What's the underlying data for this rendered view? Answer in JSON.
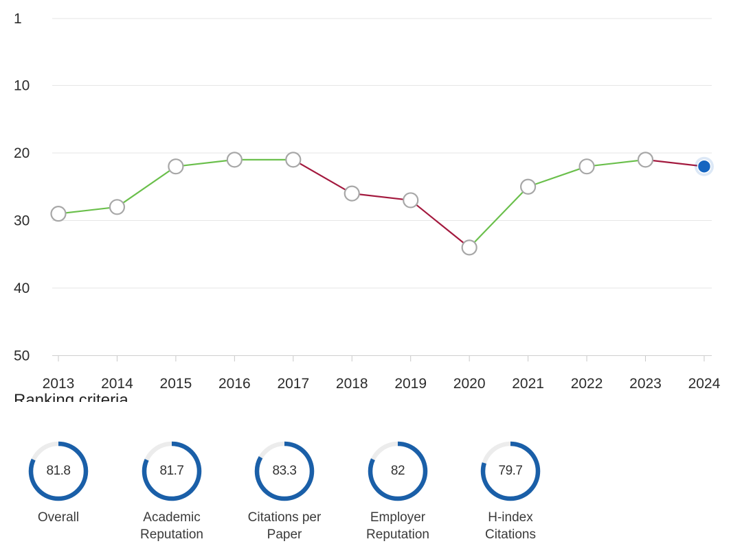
{
  "colors": {
    "improve_line": "#6abf4b",
    "decline_line": "#a3193e",
    "marker_fill": "#ffffff",
    "marker_stroke": "#a7a7a7",
    "current_marker": "#1565c0",
    "grid": "#e6e6e6",
    "ring_progress": "#1a5fa8",
    "ring_track": "#ececec"
  },
  "chart_data": {
    "type": "line",
    "title": "",
    "xlabel": "",
    "ylabel": "",
    "y_inverted": true,
    "ylim": [
      1,
      50
    ],
    "y_ticks": [
      "1",
      "10",
      "20",
      "30",
      "40",
      "50"
    ],
    "grid": true,
    "categories": [
      "2013",
      "2014",
      "2015",
      "2016",
      "2017",
      "2018",
      "2019",
      "2020",
      "2021",
      "2022",
      "2023",
      "2024"
    ],
    "series": [
      {
        "values": [
          29,
          28,
          22,
          21,
          21,
          26,
          27,
          34,
          25,
          22,
          21,
          22
        ]
      }
    ],
    "highlighted_point": "2024"
  },
  "criteria": {
    "heading": "Ranking criteria",
    "items": [
      {
        "value": "81.8",
        "score": 81.8,
        "label_lines": [
          "Overall"
        ]
      },
      {
        "value": "81.7",
        "score": 81.7,
        "label_lines": [
          "Academic",
          "Reputation"
        ]
      },
      {
        "value": "83.3",
        "score": 83.3,
        "label_lines": [
          "Citations per",
          "Paper"
        ]
      },
      {
        "value": "82",
        "score": 82,
        "label_lines": [
          "Employer",
          "Reputation"
        ]
      },
      {
        "value": "79.7",
        "score": 79.7,
        "label_lines": [
          "H-index",
          "Citations"
        ]
      }
    ]
  }
}
